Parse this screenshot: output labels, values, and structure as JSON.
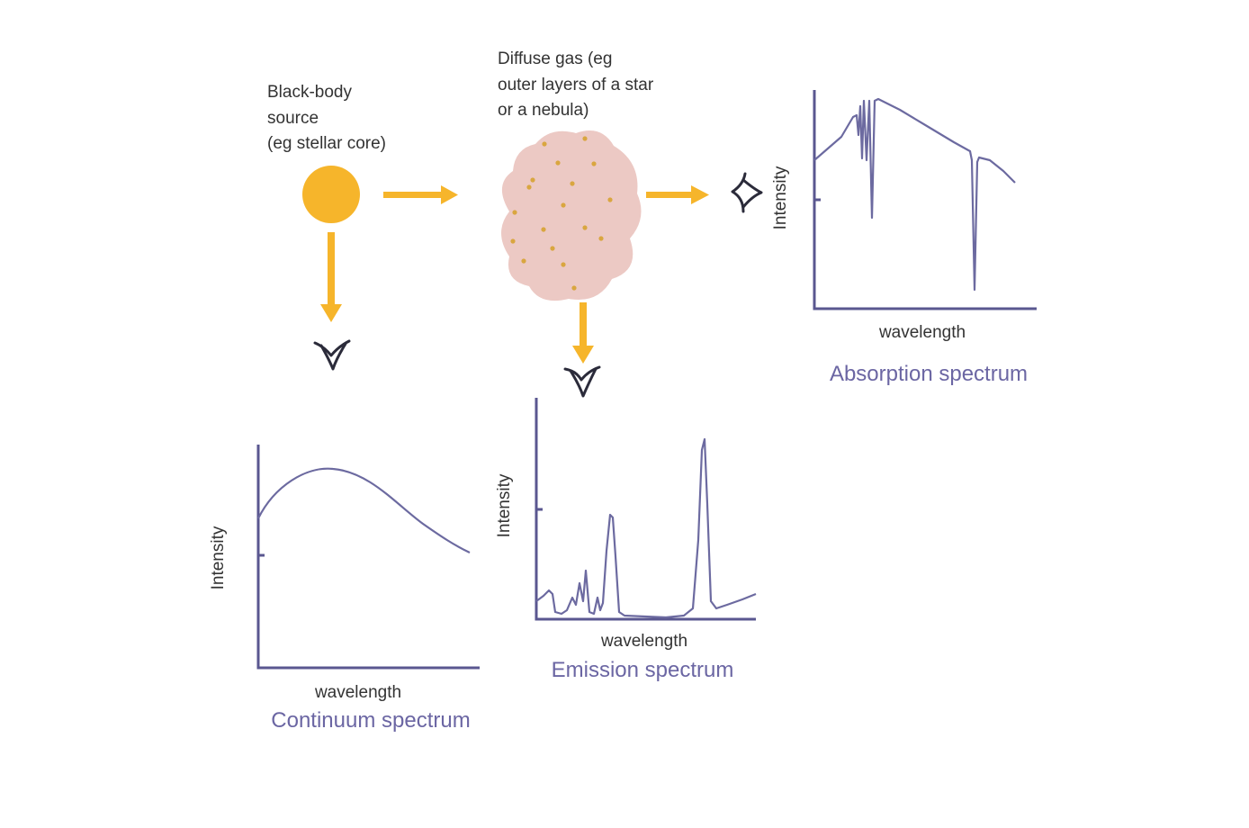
{
  "labels": {
    "blackbody": [
      "Black-body",
      "source",
      "(eg stellar core)"
    ],
    "gas": [
      "Diffuse gas (eg",
      "outer layers of a star",
      "or a nebula)"
    ]
  },
  "colors": {
    "source": "#f6b52b",
    "gas": "#ecc9c4",
    "gas_particles": "#d9a640",
    "arrow": "#f6b52b",
    "axis": "#5a5790",
    "curve": "#6c6aa0",
    "title": "#6b66a3",
    "eye": "#2b2b3a"
  },
  "icons": {
    "eye": "eye-icon",
    "arrow": "arrow-icon"
  },
  "charts": {
    "continuum": {
      "title": "Continuum spectrum",
      "xlabel": "wavelength",
      "ylabel": "Intensity"
    },
    "emission": {
      "title": "Emission spectrum",
      "xlabel": "wavelength",
      "ylabel": "Intensity"
    },
    "absorption": {
      "title": "Absorption spectrum",
      "xlabel": "wavelength",
      "ylabel": "Intensity"
    }
  }
}
